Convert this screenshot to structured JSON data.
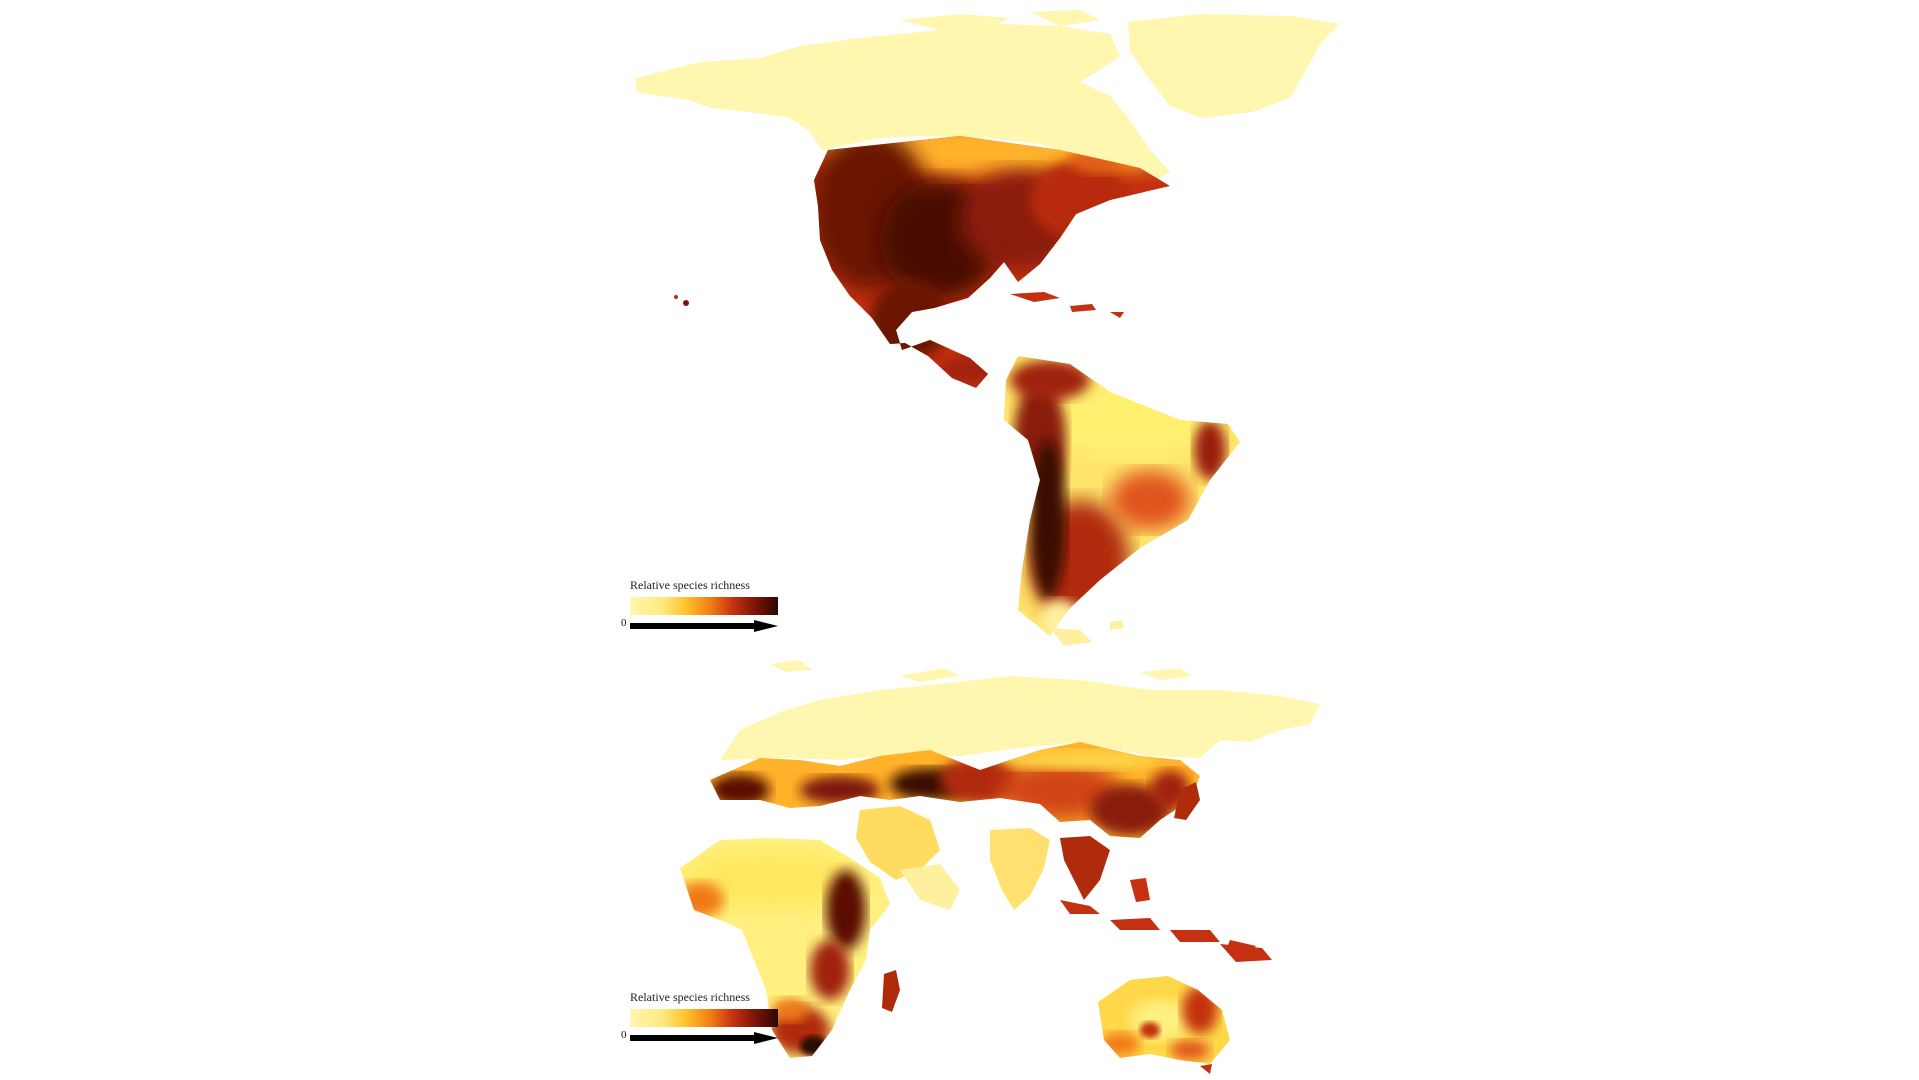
{
  "figure": {
    "panels": [
      {
        "id": "americas",
        "legend": {
          "title": "Relative species richness",
          "zero_label": "0"
        }
      },
      {
        "id": "old-world",
        "legend": {
          "title": "Relative species richness",
          "zero_label": "0"
        }
      }
    ],
    "colors": {
      "low": "#fff7b0",
      "mid_low": "#ffd23a",
      "mid": "#f07a14",
      "mid_high": "#c43010",
      "high": "#4a0a04",
      "background": "#ffffff"
    }
  }
}
